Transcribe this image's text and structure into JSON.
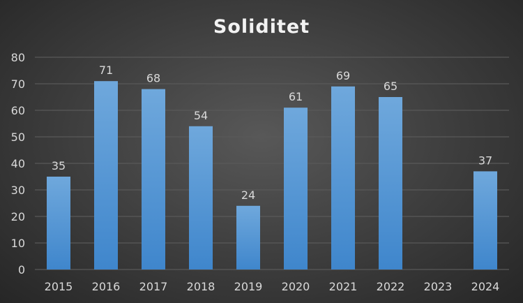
{
  "chart_data": {
    "type": "bar",
    "title": "Soliditet",
    "xlabel": "",
    "ylabel": "",
    "categories": [
      "2015",
      "2016",
      "2017",
      "2018",
      "2019",
      "2020",
      "2021",
      "2022",
      "2023",
      "2024"
    ],
    "values": [
      35,
      71,
      68,
      54,
      24,
      61,
      69,
      65,
      null,
      37
    ],
    "data_labels": [
      "35",
      "71",
      "68",
      "54",
      "24",
      "61",
      "69",
      "65",
      "",
      "37"
    ],
    "ylim": [
      0,
      80
    ],
    "yticks": [
      "0",
      "10",
      "20",
      "30",
      "40",
      "50",
      "60",
      "70",
      "80"
    ],
    "grid": true,
    "legend": "none",
    "colors": {
      "bar_top": "#6fa8dc",
      "bar_bottom": "#3f86cc"
    }
  }
}
